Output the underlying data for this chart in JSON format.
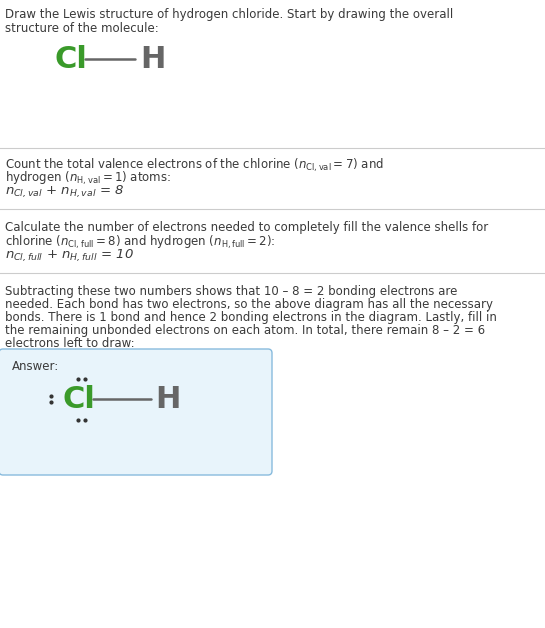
{
  "bg_color": "#ffffff",
  "text_color": "#3a3a3a",
  "green_color": "#3a9a2a",
  "gray_color": "#666666",
  "div_color": "#cccccc",
  "box_edge": "#88bbdd",
  "box_face": "#e8f4fb",
  "dot_color": "#333333",
  "figsize": [
    5.45,
    6.28
  ],
  "dpi": 100,
  "title_line1": "Draw the Lewis structure of hydrogen chloride. Start by drawing the overall",
  "title_line2": "structure of the molecule:",
  "s1_line1": "Count the total valence electrons of the chlorine (",
  "s1_line2": "hydrogen (",
  "s1_line3": "atoms:",
  "s2_line1": "Calculate the number of electrons needed to completely fill the valence shells for",
  "s2_line2": "chlorine (",
  "s3_lines": [
    "Subtracting these two numbers shows that 10 – 8 = 2 bonding electrons are",
    "needed. Each bond has two electrons, so the above diagram has all the necessary",
    "bonds. There is 1 bond and hence 2 bonding electrons in the diagram. Lastly, fill in",
    "the remaining unbonded electrons on each atom. In total, there remain 8 – 2 = 6",
    "electrons left to draw:"
  ],
  "answer_label": "Answer:"
}
